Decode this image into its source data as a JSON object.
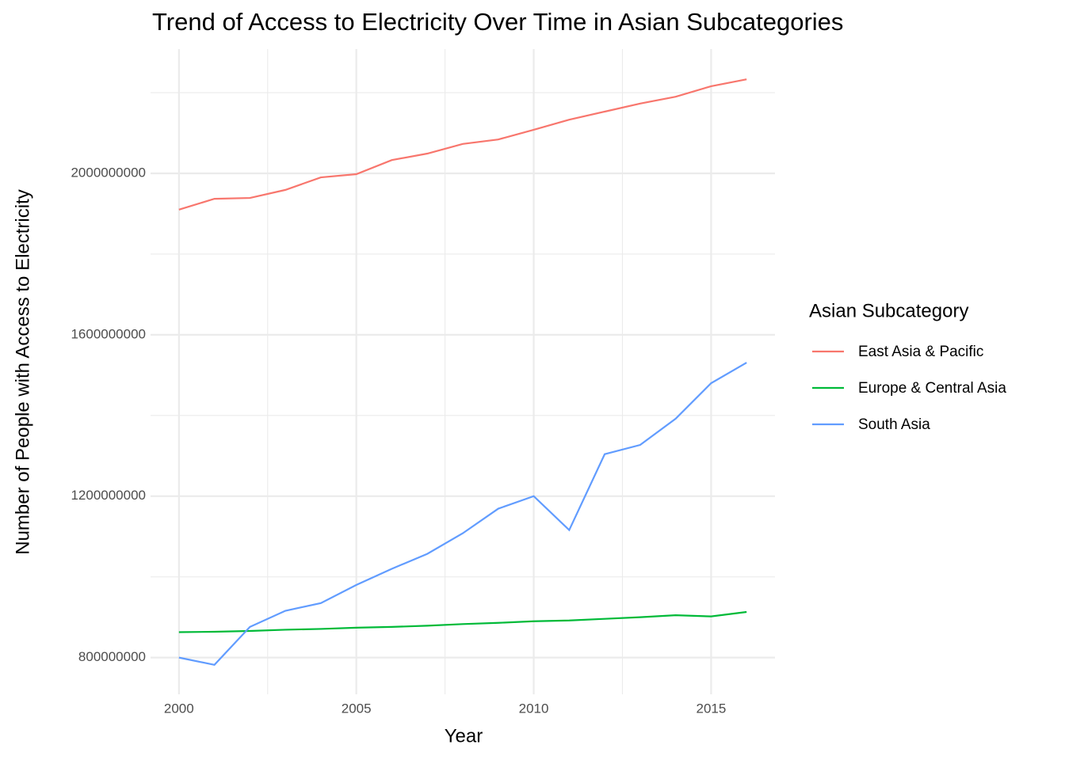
{
  "chart_data": {
    "type": "line",
    "title": "Trend of Access to Electricity Over Time in Asian Subcategories",
    "x_label": "Year",
    "y_label": "Number of People with Access to Electricity",
    "legend_title": "Asian Subcategory",
    "legend_position": "right",
    "grid": true,
    "x": [
      2000,
      2001,
      2002,
      2003,
      2004,
      2005,
      2006,
      2007,
      2008,
      2009,
      2010,
      2011,
      2012,
      2013,
      2014,
      2015,
      2016
    ],
    "xlim": [
      1999.2,
      2016.8
    ],
    "xticks": [
      2000,
      2005,
      2010,
      2015
    ],
    "ylim": [
      709000000,
      2308000000
    ],
    "yticks": [
      800000000,
      1200000000,
      1600000000,
      2000000000
    ],
    "series": [
      {
        "name": "East Asia & Pacific",
        "color": "#F8766D",
        "values": [
          1910000000,
          1937000000,
          1939000000,
          1959000000,
          1990000000,
          1998000000,
          2033000000,
          2049000000,
          2073000000,
          2084000000,
          2108000000,
          2133000000,
          2153000000,
          2173000000,
          2190000000,
          2216000000,
          2233000000
        ]
      },
      {
        "name": "Europe & Central Asia",
        "color": "#00BA38",
        "values": [
          863000000,
          864000000,
          866000000,
          869000000,
          871000000,
          874000000,
          876000000,
          879000000,
          883000000,
          886000000,
          890000000,
          892000000,
          896000000,
          900000000,
          905000000,
          902000000,
          913000000
        ]
      },
      {
        "name": "South Asia",
        "color": "#619CFF",
        "values": [
          800000000,
          782000000,
          876000000,
          916000000,
          935000000,
          980000000,
          1020000000,
          1057000000,
          1108000000,
          1169000000,
          1200000000,
          1116000000,
          1304000000,
          1327000000,
          1392000000,
          1480000000,
          1531000000
        ]
      }
    ]
  }
}
